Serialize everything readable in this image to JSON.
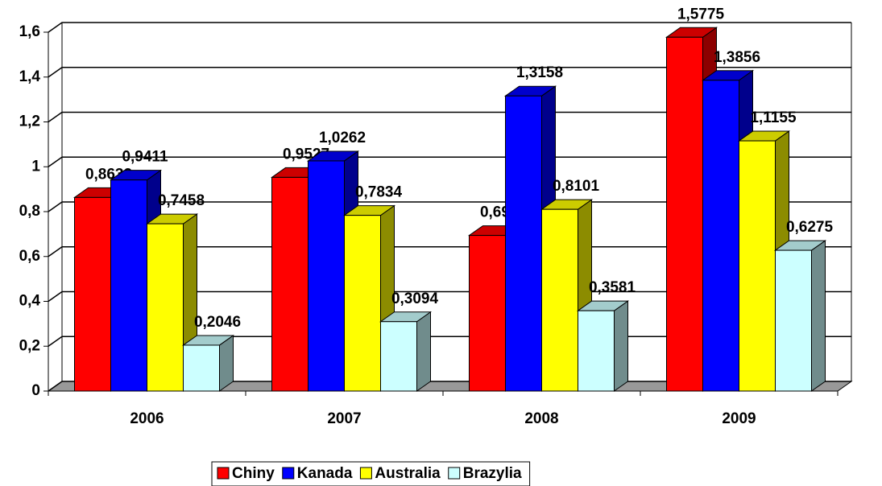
{
  "chart_data": {
    "type": "bar3d",
    "categories": [
      "2006",
      "2007",
      "2008",
      "2009"
    ],
    "series": [
      {
        "name": "Chiny",
        "color": "#ff0000",
        "values": [
          0.8632,
          0.9527,
          0.6939,
          1.5775
        ],
        "value_labels": [
          "0,8632",
          "0,9527",
          "0,6939",
          "1,5775"
        ]
      },
      {
        "name": "Kanada",
        "color": "#0000ff",
        "values": [
          0.9411,
          1.0262,
          1.3158,
          1.3856
        ],
        "value_labels": [
          "0,9411",
          "1,0262",
          "1,3158",
          "1,3856"
        ]
      },
      {
        "name": "Australia",
        "color": "#ffff00",
        "values": [
          0.7458,
          0.7834,
          0.8101,
          1.1155
        ],
        "value_labels": [
          "0,7458",
          "0,7834",
          "0,8101",
          "1,1155"
        ]
      },
      {
        "name": "Brazylia",
        "color": "#ccffff",
        "values": [
          0.2046,
          0.3094,
          0.3581,
          0.6275
        ],
        "value_labels": [
          "0,2046",
          "0,3094",
          "0,3581",
          "0,6275"
        ]
      }
    ],
    "ylim": [
      0,
      1.6
    ],
    "yticks": [
      0,
      {
        "value": 0.2,
        "label": "0,2"
      },
      {
        "value": 0.4,
        "label": "0,4"
      },
      {
        "value": 0.6,
        "label": "0,6"
      },
      {
        "value": 0.8,
        "label": "0,8"
      },
      1,
      {
        "value": 1.2,
        "label": "1,2"
      },
      {
        "value": 1.4,
        "label": "1,4"
      },
      {
        "value": 1.6,
        "label": "1,6"
      }
    ],
    "grid": true,
    "legend": "bottom"
  }
}
